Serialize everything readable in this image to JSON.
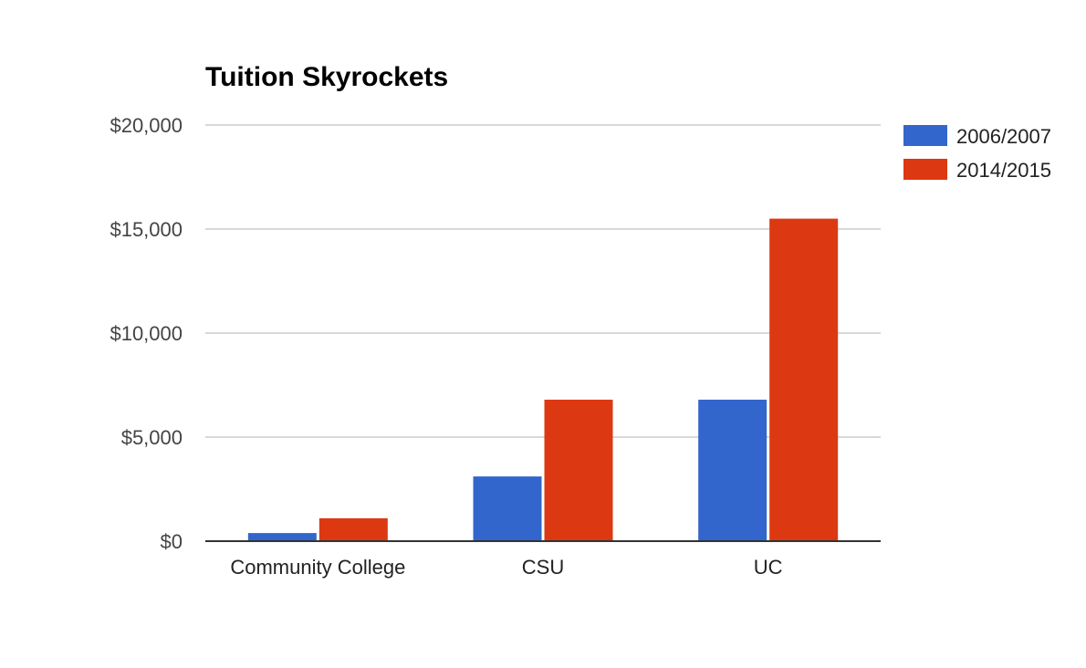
{
  "chart_data": {
    "type": "bar",
    "title": "Tuition Skyrockets",
    "xlabel": "",
    "ylabel": "",
    "categories": [
      "Community College",
      "CSU",
      "UC"
    ],
    "series": [
      {
        "name": "2006/2007",
        "color": "#3366cc",
        "values": [
          390,
          3110,
          6800
        ]
      },
      {
        "name": "2014/2015",
        "color": "#dc3912",
        "values": [
          1100,
          6800,
          15500
        ]
      }
    ],
    "ylim": [
      0,
      20000
    ],
    "yticks": [
      0,
      5000,
      10000,
      15000,
      20000
    ],
    "ytick_labels": [
      "$0",
      "$5,000",
      "$10,000",
      "$15,000",
      "$20,000"
    ],
    "grid": true,
    "legend_position": "top-right",
    "colors": {
      "gridline": "#cccccc",
      "axis": "#333333"
    }
  }
}
